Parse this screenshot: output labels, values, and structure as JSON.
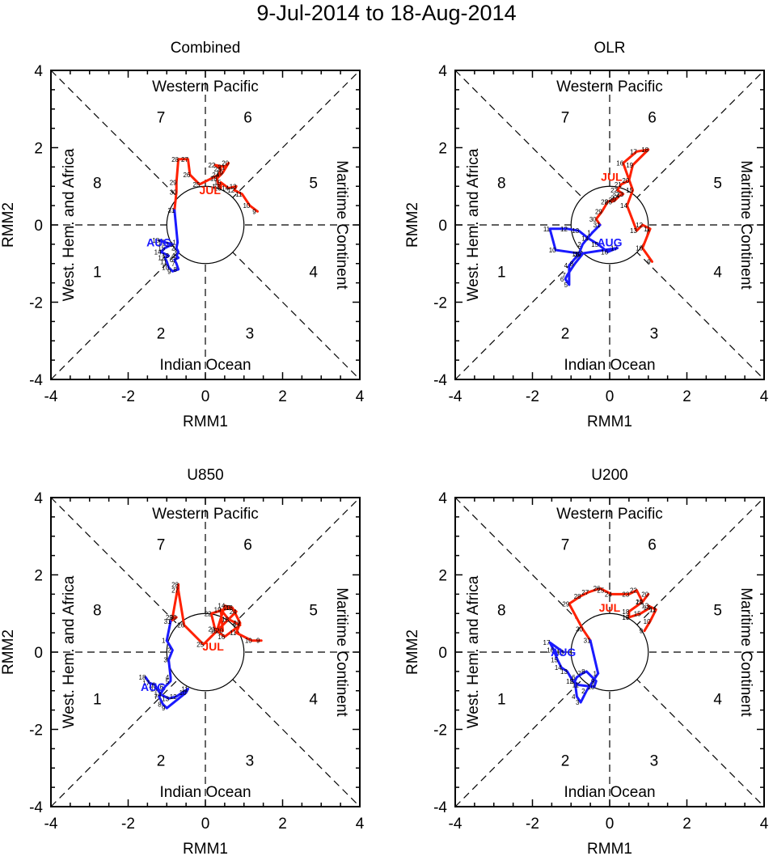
{
  "title": "9-Jul-2014 to 18-Aug-2014",
  "colors": {
    "july": "#ff2000",
    "august": "#1a1aff",
    "axes": "#000000",
    "day_labels": "#000000"
  },
  "chart_data": [
    {
      "type": "line",
      "title": "Combined",
      "xlabel": "RMM1",
      "ylabel": "RMM2",
      "xlim": [
        -4,
        4
      ],
      "ylim": [
        -4,
        4
      ],
      "xticks": [
        "-4",
        "-2",
        "0",
        "2",
        "4"
      ],
      "yticks": [
        "-4",
        "-2",
        "0",
        "2",
        "4"
      ],
      "region_labels": {
        "top": "Western Pacific",
        "bottom": "Indian Ocean",
        "left": "West. Hem. and Africa",
        "right": "Maritime Continent"
      },
      "phases": [
        {
          "phase": "1",
          "x": -2.8,
          "y": -1.2
        },
        {
          "phase": "2",
          "x": -1.15,
          "y": -2.8
        },
        {
          "phase": "3",
          "x": 1.15,
          "y": -2.8
        },
        {
          "phase": "4",
          "x": 2.8,
          "y": -1.2
        },
        {
          "phase": "5",
          "x": 2.8,
          "y": 1.1
        },
        {
          "phase": "6",
          "x": 1.1,
          "y": 2.8
        },
        {
          "phase": "7",
          "x": -1.15,
          "y": 2.8
        },
        {
          "phase": "8",
          "x": -2.8,
          "y": 1.1
        }
      ],
      "month_labels": [
        {
          "text": "JUL",
          "x": 0.12,
          "y": 0.9,
          "series": "july"
        },
        {
          "text": "AUG",
          "x": -1.2,
          "y": -0.45,
          "series": "august"
        }
      ],
      "series": [
        {
          "name": "july",
          "color": "#ff2000",
          "days": [
            "9",
            "10",
            "11",
            "12",
            "13",
            "14",
            "15",
            "16",
            "17",
            "18",
            "19",
            "20",
            "21",
            "22",
            "23",
            "24",
            "25",
            "26",
            "27",
            "28",
            "29",
            "30",
            "31"
          ],
          "x": [
            1.35,
            1.15,
            0.95,
            0.75,
            0.8,
            0.6,
            0.4,
            0.4,
            0.35,
            0.3,
            0.45,
            0.6,
            0.5,
            0.25,
            0.4,
            0.35,
            -0.15,
            -0.4,
            -0.45,
            -0.7,
            -0.75,
            -0.75,
            -0.8
          ],
          "y": [
            0.35,
            0.5,
            0.8,
            0.9,
            1.0,
            0.95,
            1.1,
            0.95,
            1.0,
            1.2,
            1.35,
            1.6,
            1.5,
            1.55,
            1.45,
            1.3,
            1.05,
            1.3,
            1.7,
            1.7,
            1.1,
            0.85,
            0.38
          ]
        },
        {
          "name": "august",
          "color": "#1a1aff",
          "days": [
            "1",
            "2",
            "3",
            "4",
            "5",
            "6",
            "7",
            "8",
            "9",
            "10",
            "11",
            "12",
            "13",
            "14",
            "15",
            "16",
            "17",
            "18"
          ],
          "x": [
            -0.72,
            -0.75,
            -0.7,
            -0.75,
            -0.7,
            -0.8,
            -0.75,
            -0.7,
            -0.85,
            -0.95,
            -1.0,
            -1.05,
            -0.95,
            -1.15,
            -1.05,
            -0.85,
            -1.05,
            -1.2
          ],
          "y": [
            -0.45,
            -0.6,
            -0.7,
            -0.8,
            -0.85,
            -0.9,
            -1.0,
            -1.15,
            -1.2,
            -1.1,
            -0.95,
            -0.85,
            -0.8,
            -0.7,
            -0.6,
            -0.5,
            -0.45,
            -0.4
          ]
        }
      ]
    },
    {
      "type": "line",
      "title": "OLR",
      "xlabel": "RMM1",
      "ylabel": "RMM2",
      "xlim": [
        -4,
        4
      ],
      "ylim": [
        -4,
        4
      ],
      "xticks": [
        "-4",
        "-2",
        "0",
        "2",
        "4"
      ],
      "yticks": [
        "-4",
        "-2",
        "0",
        "2",
        "4"
      ],
      "region_labels": {
        "top": "Western Pacific",
        "bottom": "Indian Ocean",
        "left": "West. Hem. and Africa",
        "right": "Maritime Continent"
      },
      "phases": [
        {
          "phase": "1",
          "x": -2.8,
          "y": -1.2
        },
        {
          "phase": "2",
          "x": -1.15,
          "y": -2.8
        },
        {
          "phase": "3",
          "x": 1.15,
          "y": -2.8
        },
        {
          "phase": "4",
          "x": 2.8,
          "y": -1.2
        },
        {
          "phase": "5",
          "x": 2.8,
          "y": 1.1
        },
        {
          "phase": "6",
          "x": 1.1,
          "y": 2.8
        },
        {
          "phase": "7",
          "x": -1.15,
          "y": 2.8
        },
        {
          "phase": "8",
          "x": -2.8,
          "y": 1.1
        }
      ],
      "month_labels": [
        {
          "text": "JUL",
          "x": 0.05,
          "y": 1.25,
          "series": "july"
        },
        {
          "text": "AUG",
          "x": 0.0,
          "y": -0.45,
          "series": "august"
        }
      ],
      "series": [
        {
          "name": "july",
          "color": "#ff2000",
          "days": [
            "9",
            "10",
            "11",
            "12",
            "13",
            "14",
            "15",
            "16",
            "17",
            "18",
            "19",
            "20",
            "21",
            "22",
            "23",
            "24",
            "25",
            "26",
            "27",
            "28",
            "29",
            "30",
            "31"
          ],
          "x": [
            1.1,
            0.85,
            1.05,
            0.85,
            0.7,
            0.45,
            0.6,
            0.35,
            0.7,
            1.0,
            0.6,
            0.5,
            0.3,
            0.2,
            0.35,
            0.25,
            0.15,
            0.05,
            0.2,
            -0.05,
            -0.2,
            -0.35,
            -0.25
          ],
          "y": [
            -0.95,
            -0.6,
            -0.1,
            0.0,
            -0.15,
            0.5,
            0.9,
            1.6,
            1.9,
            1.95,
            1.55,
            1.15,
            1.05,
            0.9,
            0.8,
            0.75,
            0.65,
            0.6,
            0.7,
            0.6,
            0.35,
            0.15,
            0.0
          ]
        },
        {
          "name": "august",
          "color": "#1a1aff",
          "days": [
            "1",
            "2",
            "3",
            "4",
            "5",
            "6",
            "7",
            "8",
            "9",
            "10",
            "11",
            "12",
            "13",
            "14",
            "15",
            "16",
            "17",
            "18"
          ],
          "x": [
            -0.45,
            -0.7,
            -0.8,
            -1.05,
            -1.05,
            -1.15,
            -1.1,
            -0.9,
            -0.7,
            -1.4,
            -1.55,
            -1.1,
            -0.8,
            -0.55,
            -0.3,
            -0.05,
            0.2,
            -0.8
          ],
          "y": [
            -0.2,
            -0.5,
            -0.75,
            -1.05,
            -1.55,
            -1.4,
            -1.3,
            -1.0,
            -0.75,
            -0.65,
            -0.1,
            -0.1,
            -0.15,
            -0.35,
            -0.5,
            -0.7,
            -0.6,
            -0.75
          ]
        }
      ]
    },
    {
      "type": "line",
      "title": "U850",
      "xlabel": "RMM1",
      "ylabel": "RMM2",
      "xlim": [
        -4,
        4
      ],
      "ylim": [
        -4,
        4
      ],
      "xticks": [
        "-4",
        "-2",
        "0",
        "2",
        "4"
      ],
      "yticks": [
        "-4",
        "-2",
        "0",
        "2",
        "4"
      ],
      "region_labels": {
        "top": "Western Pacific",
        "bottom": "Indian Ocean",
        "left": "West. Hem. and Africa",
        "right": "Maritime Continent"
      },
      "phases": [
        {
          "phase": "1",
          "x": -2.8,
          "y": -1.2
        },
        {
          "phase": "2",
          "x": -1.15,
          "y": -2.8
        },
        {
          "phase": "3",
          "x": 1.15,
          "y": -2.8
        },
        {
          "phase": "4",
          "x": 2.8,
          "y": -1.2
        },
        {
          "phase": "5",
          "x": 2.8,
          "y": 1.1
        },
        {
          "phase": "6",
          "x": 1.1,
          "y": 2.8
        },
        {
          "phase": "7",
          "x": -1.15,
          "y": 2.8
        },
        {
          "phase": "8",
          "x": -2.8,
          "y": 1.1
        }
      ],
      "month_labels": [
        {
          "text": "JUL",
          "x": 0.2,
          "y": 0.15,
          "series": "july"
        },
        {
          "text": "AUG",
          "x": -1.35,
          "y": -0.9,
          "series": "august"
        }
      ],
      "series": [
        {
          "name": "july",
          "color": "#ff2000",
          "days": [
            "9",
            "10",
            "11",
            "12",
            "13",
            "14",
            "15",
            "16",
            "17",
            "18",
            "19",
            "20",
            "21",
            "22",
            "23",
            "24",
            "25",
            "26",
            "27",
            "28",
            "29",
            "30",
            "31"
          ],
          "x": [
            1.45,
            1.2,
            0.8,
            0.9,
            0.7,
            0.5,
            0.3,
            0.5,
            0.9,
            0.6,
            0.4,
            0.45,
            0.25,
            0.15,
            0.65,
            0.8,
            -0.05,
            -0.55,
            -0.7,
            -0.7,
            -0.85,
            -0.75,
            -0.9
          ],
          "y": [
            0.3,
            0.3,
            0.5,
            0.75,
            1.15,
            1.2,
            0.55,
            0.4,
            0.7,
            0.85,
            1.1,
            0.55,
            0.6,
            1.0,
            1.15,
            1.05,
            0.2,
            0.7,
            1.6,
            1.75,
            0.9,
            0.9,
            0.8
          ]
        },
        {
          "name": "august",
          "color": "#1a1aff",
          "days": [
            "1",
            "2",
            "3",
            "4",
            "5",
            "6",
            "7",
            "8",
            "9",
            "10",
            "11",
            "12",
            "13",
            "14",
            "15",
            "16",
            "17",
            "18"
          ],
          "x": [
            -1.0,
            -0.85,
            -0.95,
            -0.9,
            -0.9,
            -1.05,
            -1.2,
            -1.1,
            -1.0,
            -0.5,
            -0.45,
            -0.75,
            -0.95,
            -1.15,
            -1.25,
            -1.3,
            -1.45,
            -1.55
          ],
          "y": [
            0.3,
            0.05,
            -0.2,
            -0.65,
            -0.75,
            -0.9,
            -1.15,
            -1.35,
            -1.45,
            -1.05,
            -0.95,
            -1.15,
            -1.2,
            -1.1,
            -0.95,
            -0.85,
            -0.8,
            -0.65
          ]
        }
      ]
    },
    {
      "type": "line",
      "title": "U200",
      "xlabel": "RMM1",
      "ylabel": "RMM2",
      "xlim": [
        -4,
        4
      ],
      "ylim": [
        -4,
        4
      ],
      "xticks": [
        "-4",
        "-2",
        "0",
        "2",
        "4"
      ],
      "yticks": [
        "-4",
        "-2",
        "0",
        "2",
        "4"
      ],
      "region_labels": {
        "top": "Western Pacific",
        "bottom": "Indian Ocean",
        "left": "West. Hem. and Africa",
        "right": "Maritime Continent"
      },
      "phases": [
        {
          "phase": "1",
          "x": -2.8,
          "y": -1.2
        },
        {
          "phase": "2",
          "x": -1.15,
          "y": -2.8
        },
        {
          "phase": "3",
          "x": 1.15,
          "y": -2.8
        },
        {
          "phase": "4",
          "x": 2.8,
          "y": -1.2
        },
        {
          "phase": "5",
          "x": 2.8,
          "y": 1.1
        },
        {
          "phase": "6",
          "x": 1.1,
          "y": 2.8
        },
        {
          "phase": "7",
          "x": -1.15,
          "y": 2.8
        },
        {
          "phase": "8",
          "x": -2.8,
          "y": 1.1
        }
      ],
      "month_labels": [
        {
          "text": "JUL",
          "x": 0.0,
          "y": 1.15,
          "series": "july"
        },
        {
          "text": "AUG",
          "x": -1.2,
          "y": 0.0,
          "series": "august"
        }
      ],
      "series": [
        {
          "name": "july",
          "color": "#ff2000",
          "days": [
            "9",
            "10",
            "11",
            "12",
            "13",
            "14",
            "15",
            "16",
            "17",
            "18",
            "19",
            "20",
            "21",
            "22",
            "23",
            "24",
            "25",
            "26",
            "27",
            "28",
            "29",
            "30",
            "31"
          ],
          "x": [
            0.9,
            1.05,
            1.2,
            1.2,
            1.0,
            1.05,
            0.8,
            0.5,
            0.5,
            0.5,
            0.85,
            1.0,
            0.85,
            0.7,
            0.5,
            0.05,
            -0.15,
            -0.25,
            -0.55,
            -0.75,
            -1.05,
            -0.7,
            -0.5
          ],
          "y": [
            0.55,
            0.8,
            1.1,
            1.1,
            1.2,
            1.15,
            1.0,
            0.9,
            0.9,
            1.05,
            1.3,
            1.5,
            1.3,
            1.6,
            1.5,
            1.5,
            1.6,
            1.65,
            1.55,
            1.45,
            1.25,
            0.6,
            0.3
          ]
        },
        {
          "name": "august",
          "color": "#1a1aff",
          "days": [
            "1",
            "2",
            "3",
            "4",
            "5",
            "6",
            "7",
            "8",
            "9",
            "10",
            "11",
            "12",
            "13",
            "14",
            "15",
            "16",
            "17",
            "18"
          ],
          "x": [
            -0.3,
            -0.6,
            -0.75,
            -0.85,
            -0.9,
            -0.85,
            -0.7,
            -0.6,
            -0.35,
            -0.4,
            -0.8,
            -0.95,
            -1.1,
            -1.25,
            -1.35,
            -1.45,
            -1.55,
            -1.2
          ],
          "y": [
            -0.55,
            -1.0,
            -1.3,
            -1.15,
            -0.75,
            -0.65,
            -0.55,
            -0.5,
            -0.75,
            -0.9,
            -0.85,
            -0.75,
            -0.5,
            -0.4,
            -0.2,
            0.05,
            0.25,
            0.0
          ]
        }
      ]
    }
  ]
}
